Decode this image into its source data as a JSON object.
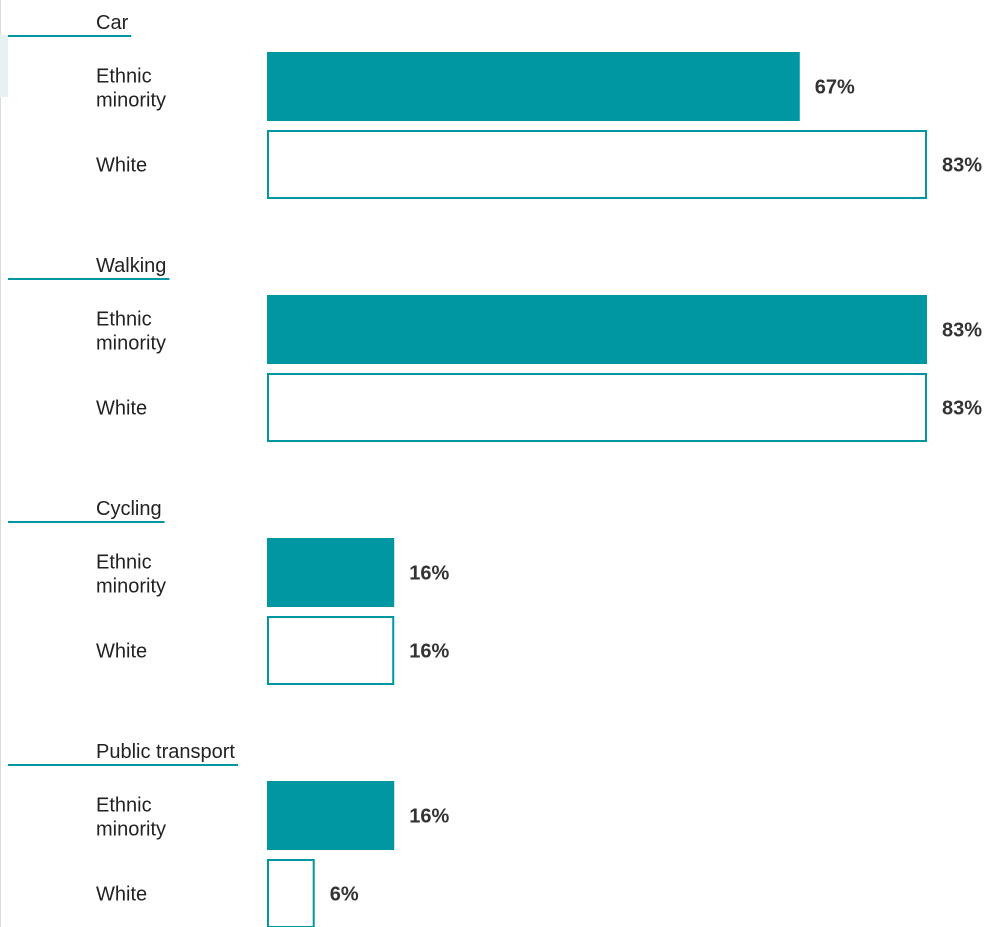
{
  "chart_data": {
    "type": "bar",
    "orientation": "horizontal",
    "title": "",
    "xlabel": "",
    "ylabel": "",
    "xlim": [
      0,
      83
    ],
    "grid": false,
    "legend": "none",
    "value_suffix": "%",
    "colors": {
      "Ethnic minority": "#0097a3",
      "White": "#ffffff",
      "outline": "#0097a3",
      "group_rule": "#0097a3"
    },
    "groups": [
      {
        "name": "Car",
        "bars": [
          {
            "label": [
              "Ethnic",
              "minority"
            ],
            "series": "Ethnic minority",
            "value": 67
          },
          {
            "label": [
              "White"
            ],
            "series": "White",
            "value": 83
          }
        ]
      },
      {
        "name": "Walking",
        "bars": [
          {
            "label": [
              "Ethnic",
              "minority"
            ],
            "series": "Ethnic minority",
            "value": 83
          },
          {
            "label": [
              "White"
            ],
            "series": "White",
            "value": 83
          }
        ]
      },
      {
        "name": "Cycling",
        "bars": [
          {
            "label": [
              "Ethnic",
              "minority"
            ],
            "series": "Ethnic minority",
            "value": 16
          },
          {
            "label": [
              "White"
            ],
            "series": "White",
            "value": 16
          }
        ]
      },
      {
        "name": "Public transport",
        "bars": [
          {
            "label": [
              "Ethnic",
              "minority"
            ],
            "series": "Ethnic minority",
            "value": 16
          },
          {
            "label": [
              "White"
            ],
            "series": "White",
            "value": 6
          }
        ]
      }
    ]
  }
}
